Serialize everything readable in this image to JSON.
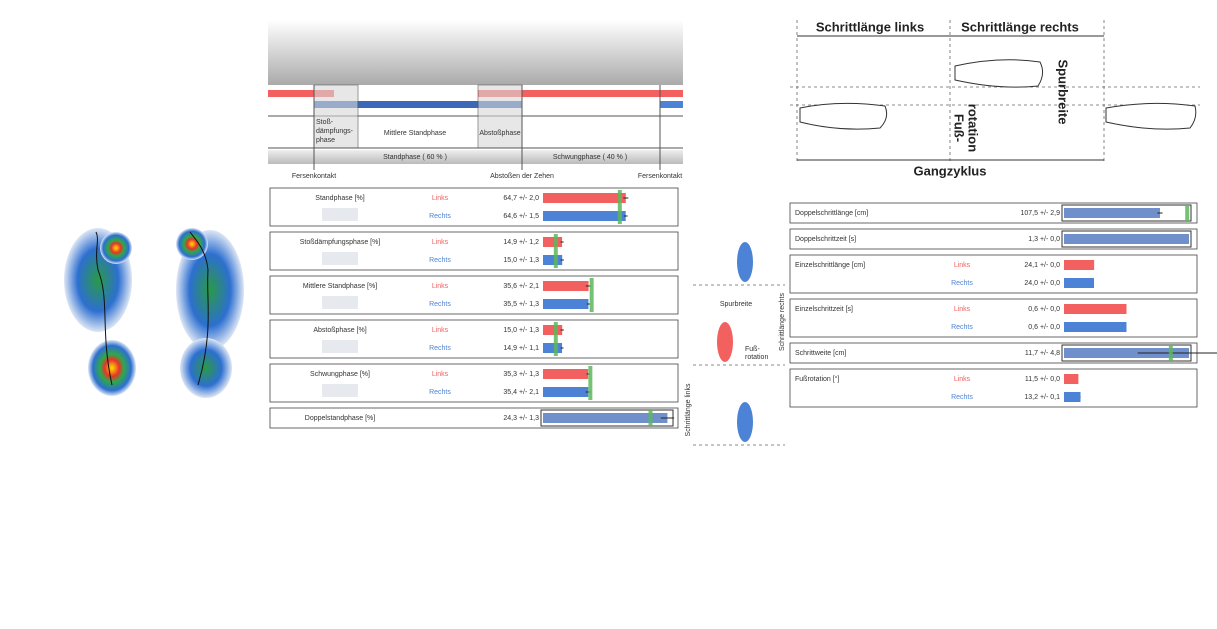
{
  "phase_diagram": {
    "stance_segments": [
      "Stoß-",
      "dämpfungs-",
      "phase"
    ],
    "mid_stance": "Mittlere Standphase",
    "push_off": "Abstoßphase",
    "stance": "Standphase ( 60 % )",
    "swing": "Schwungphase ( 40 % )",
    "events": [
      "Fersenkontakt",
      "Abstoßen der Zehen",
      "Fersenkontakt"
    ]
  },
  "step_diagram": {
    "left_step": "Schrittlänge links",
    "right_step": "Schrittlänge rechts",
    "track_width": "Spurbreite",
    "rotation": [
      "Fuß-",
      "rotation"
    ],
    "cycle": "Gangzyklus"
  },
  "foot_diagram": {
    "track_width": "Spurbreite",
    "rotation": [
      "Fuß-",
      "rotation"
    ],
    "right_step": "Schrittlänge rechts",
    "left_step": "Schrittlänge links"
  },
  "left_metrics": [
    {
      "label": "Standphase [%]",
      "xlim": [
        0,
        100
      ],
      "reference": 60,
      "rows": [
        {
          "side": "Links",
          "color": "#f2605f",
          "value": 64.7,
          "error": 2.0,
          "value_label": "64,7 +/- 2,0"
        },
        {
          "side": "Rechts",
          "color": "#4d83d6",
          "value": 64.6,
          "error": 1.5,
          "value_label": "64,6 +/- 1,5"
        }
      ]
    },
    {
      "label": "Stoßdämpfungsphase [%]",
      "xlim": [
        0,
        100
      ],
      "reference": 10,
      "rows": [
        {
          "side": "Links",
          "color": "#f2605f",
          "value": 14.9,
          "error": 1.2,
          "value_label": "14,9 +/- 1,2"
        },
        {
          "side": "Rechts",
          "color": "#4d83d6",
          "value": 15.0,
          "error": 1.3,
          "value_label": "15,0 +/- 1,3"
        }
      ]
    },
    {
      "label": "Mittlere Standphase [%]",
      "xlim": [
        0,
        100
      ],
      "reference": 38,
      "rows": [
        {
          "side": "Links",
          "color": "#f2605f",
          "value": 35.6,
          "error": 2.1,
          "value_label": "35,6 +/- 2,1"
        },
        {
          "side": "Rechts",
          "color": "#4d83d6",
          "value": 35.5,
          "error": 1.3,
          "value_label": "35,5 +/- 1,3"
        }
      ]
    },
    {
      "label": "Abstoßphase [%]",
      "xlim": [
        0,
        100
      ],
      "reference": 10,
      "rows": [
        {
          "side": "Links",
          "color": "#f2605f",
          "value": 15.0,
          "error": 1.3,
          "value_label": "15,0 +/- 1,3"
        },
        {
          "side": "Rechts",
          "color": "#4d83d6",
          "value": 14.9,
          "error": 1.1,
          "value_label": "14,9 +/- 1,1"
        }
      ]
    },
    {
      "label": "Schwungphase [%]",
      "xlim": [
        0,
        100
      ],
      "reference": 37,
      "rows": [
        {
          "side": "Links",
          "color": "#f2605f",
          "value": 35.3,
          "error": 1.3,
          "value_label": "35,3 +/- 1,3"
        },
        {
          "side": "Rechts",
          "color": "#4d83d6",
          "value": 35.4,
          "error": 2.1,
          "value_label": "35,4 +/- 2,1"
        }
      ]
    },
    {
      "label": "Doppelstandphase [%]",
      "xlim": [
        0,
        25
      ],
      "reference": 21,
      "rows": [
        {
          "color": "#7090cc",
          "value": 24.3,
          "error": 1.3,
          "value_label": "24,3 +/- 1,3"
        }
      ]
    }
  ],
  "right_metrics": [
    {
      "label": "Doppelschrittlänge [cm]",
      "xlim": [
        0,
        140
      ],
      "reference": 138,
      "rows": [
        {
          "color": "#7090cc",
          "value": 107.5,
          "error": 2.9,
          "value_label": "107,5 +/- 2,9"
        }
      ]
    },
    {
      "label": "Doppelschrittzeit [s]",
      "xlim": [
        0,
        1.3
      ],
      "rows": [
        {
          "color": "#7090cc",
          "value": 1.3,
          "error": 0.0,
          "value_label": "1,3 +/- 0,0"
        }
      ]
    },
    {
      "label": "Einzelschrittlänge [cm]",
      "xlim": [
        0,
        100
      ],
      "rows": [
        {
          "side": "Links",
          "color": "#f2605f",
          "value": 24.1,
          "error": 0.0,
          "value_label": "24,1 +/- 0,0"
        },
        {
          "side": "Rechts",
          "color": "#4d83d6",
          "value": 24.0,
          "error": 0.0,
          "value_label": "24,0 +/- 0,0"
        }
      ]
    },
    {
      "label": "Einzelschrittzeit [s]",
      "xlim": [
        0,
        1.2
      ],
      "rows": [
        {
          "side": "Links",
          "color": "#f2605f",
          "value": 0.6,
          "error": 0.0,
          "value_label": "0,6 +/- 0,0"
        },
        {
          "side": "Rechts",
          "color": "#4d83d6",
          "value": 0.6,
          "error": 0.0,
          "value_label": "0,6 +/- 0,0"
        }
      ]
    },
    {
      "label": "Schrittweite [cm]",
      "xlim": [
        0,
        11.7
      ],
      "reference": 10,
      "rows": [
        {
          "color": "#7090cc",
          "value": 11.7,
          "error": 4.8,
          "value_label": "11,7 +/- 4,8"
        }
      ]
    },
    {
      "label": "Fußrotation [°]",
      "xlim": [
        0,
        100
      ],
      "rows": [
        {
          "side": "Links",
          "color": "#f2605f",
          "value": 11.5,
          "error": 0.0,
          "value_label": "11,5 +/- 0,0"
        },
        {
          "side": "Rechts",
          "color": "#4d83d6",
          "value": 13.2,
          "error": 0.1,
          "value_label": "13,2 +/- 0,1"
        }
      ]
    }
  ]
}
